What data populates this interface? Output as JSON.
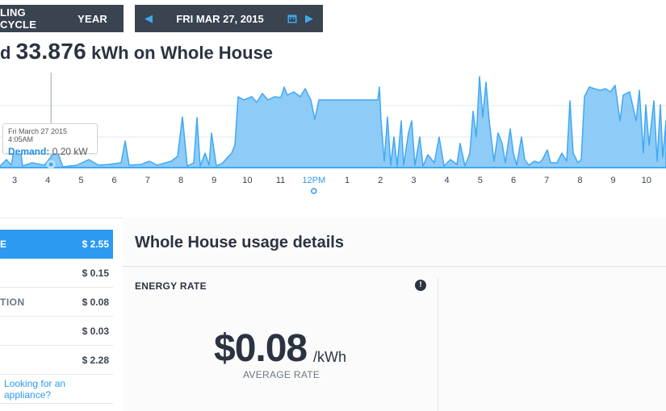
{
  "toolbar": {
    "billing_cycle_label": "LING CYCLE",
    "year_label": "YEAR",
    "date_label": "FRI MAR 27, 2015",
    "prev_icon": "chevron-left-icon",
    "next_icon": "chevron-right-icon",
    "calendar_icon": "calendar-icon"
  },
  "headline": {
    "prefix": "d",
    "value": "33.876",
    "suffix": "kWh on Whole House"
  },
  "chart_data": {
    "type": "area",
    "series_color": "#3fa9f5",
    "fill_color": "#8ecbf7",
    "x_ticks": [
      "3",
      "4",
      "5",
      "6",
      "7",
      "8",
      "9",
      "10",
      "11",
      "12PM",
      "1",
      "2",
      "3",
      "4",
      "5",
      "6",
      "7",
      "8",
      "9",
      "10"
    ],
    "highlight_tick": "12PM",
    "tooltip": {
      "time": "Fri March 27 2015 4:05AM",
      "label": "Demand:",
      "value": "0.20 kW"
    },
    "marker_tick_index": 1,
    "grid": true
  },
  "costs": [
    {
      "label": "E",
      "value": "$ 2.55",
      "active": true
    },
    {
      "label": "",
      "value": "$ 0.15",
      "active": false
    },
    {
      "label": "TION",
      "value": "$ 0.08",
      "active": false
    },
    {
      "label": "",
      "value": "$ 0.03",
      "active": false
    },
    {
      "label": "",
      "value": "$ 2.28",
      "active": false
    }
  ],
  "appliance_link": "Looking for an appliance?",
  "details": {
    "title": "Whole House usage details",
    "rate_label": "ENERGY RATE",
    "price": "$0.08",
    "unit": "/kWh",
    "avg_label": "AVERAGE RATE",
    "info_icon": "info-icon"
  }
}
